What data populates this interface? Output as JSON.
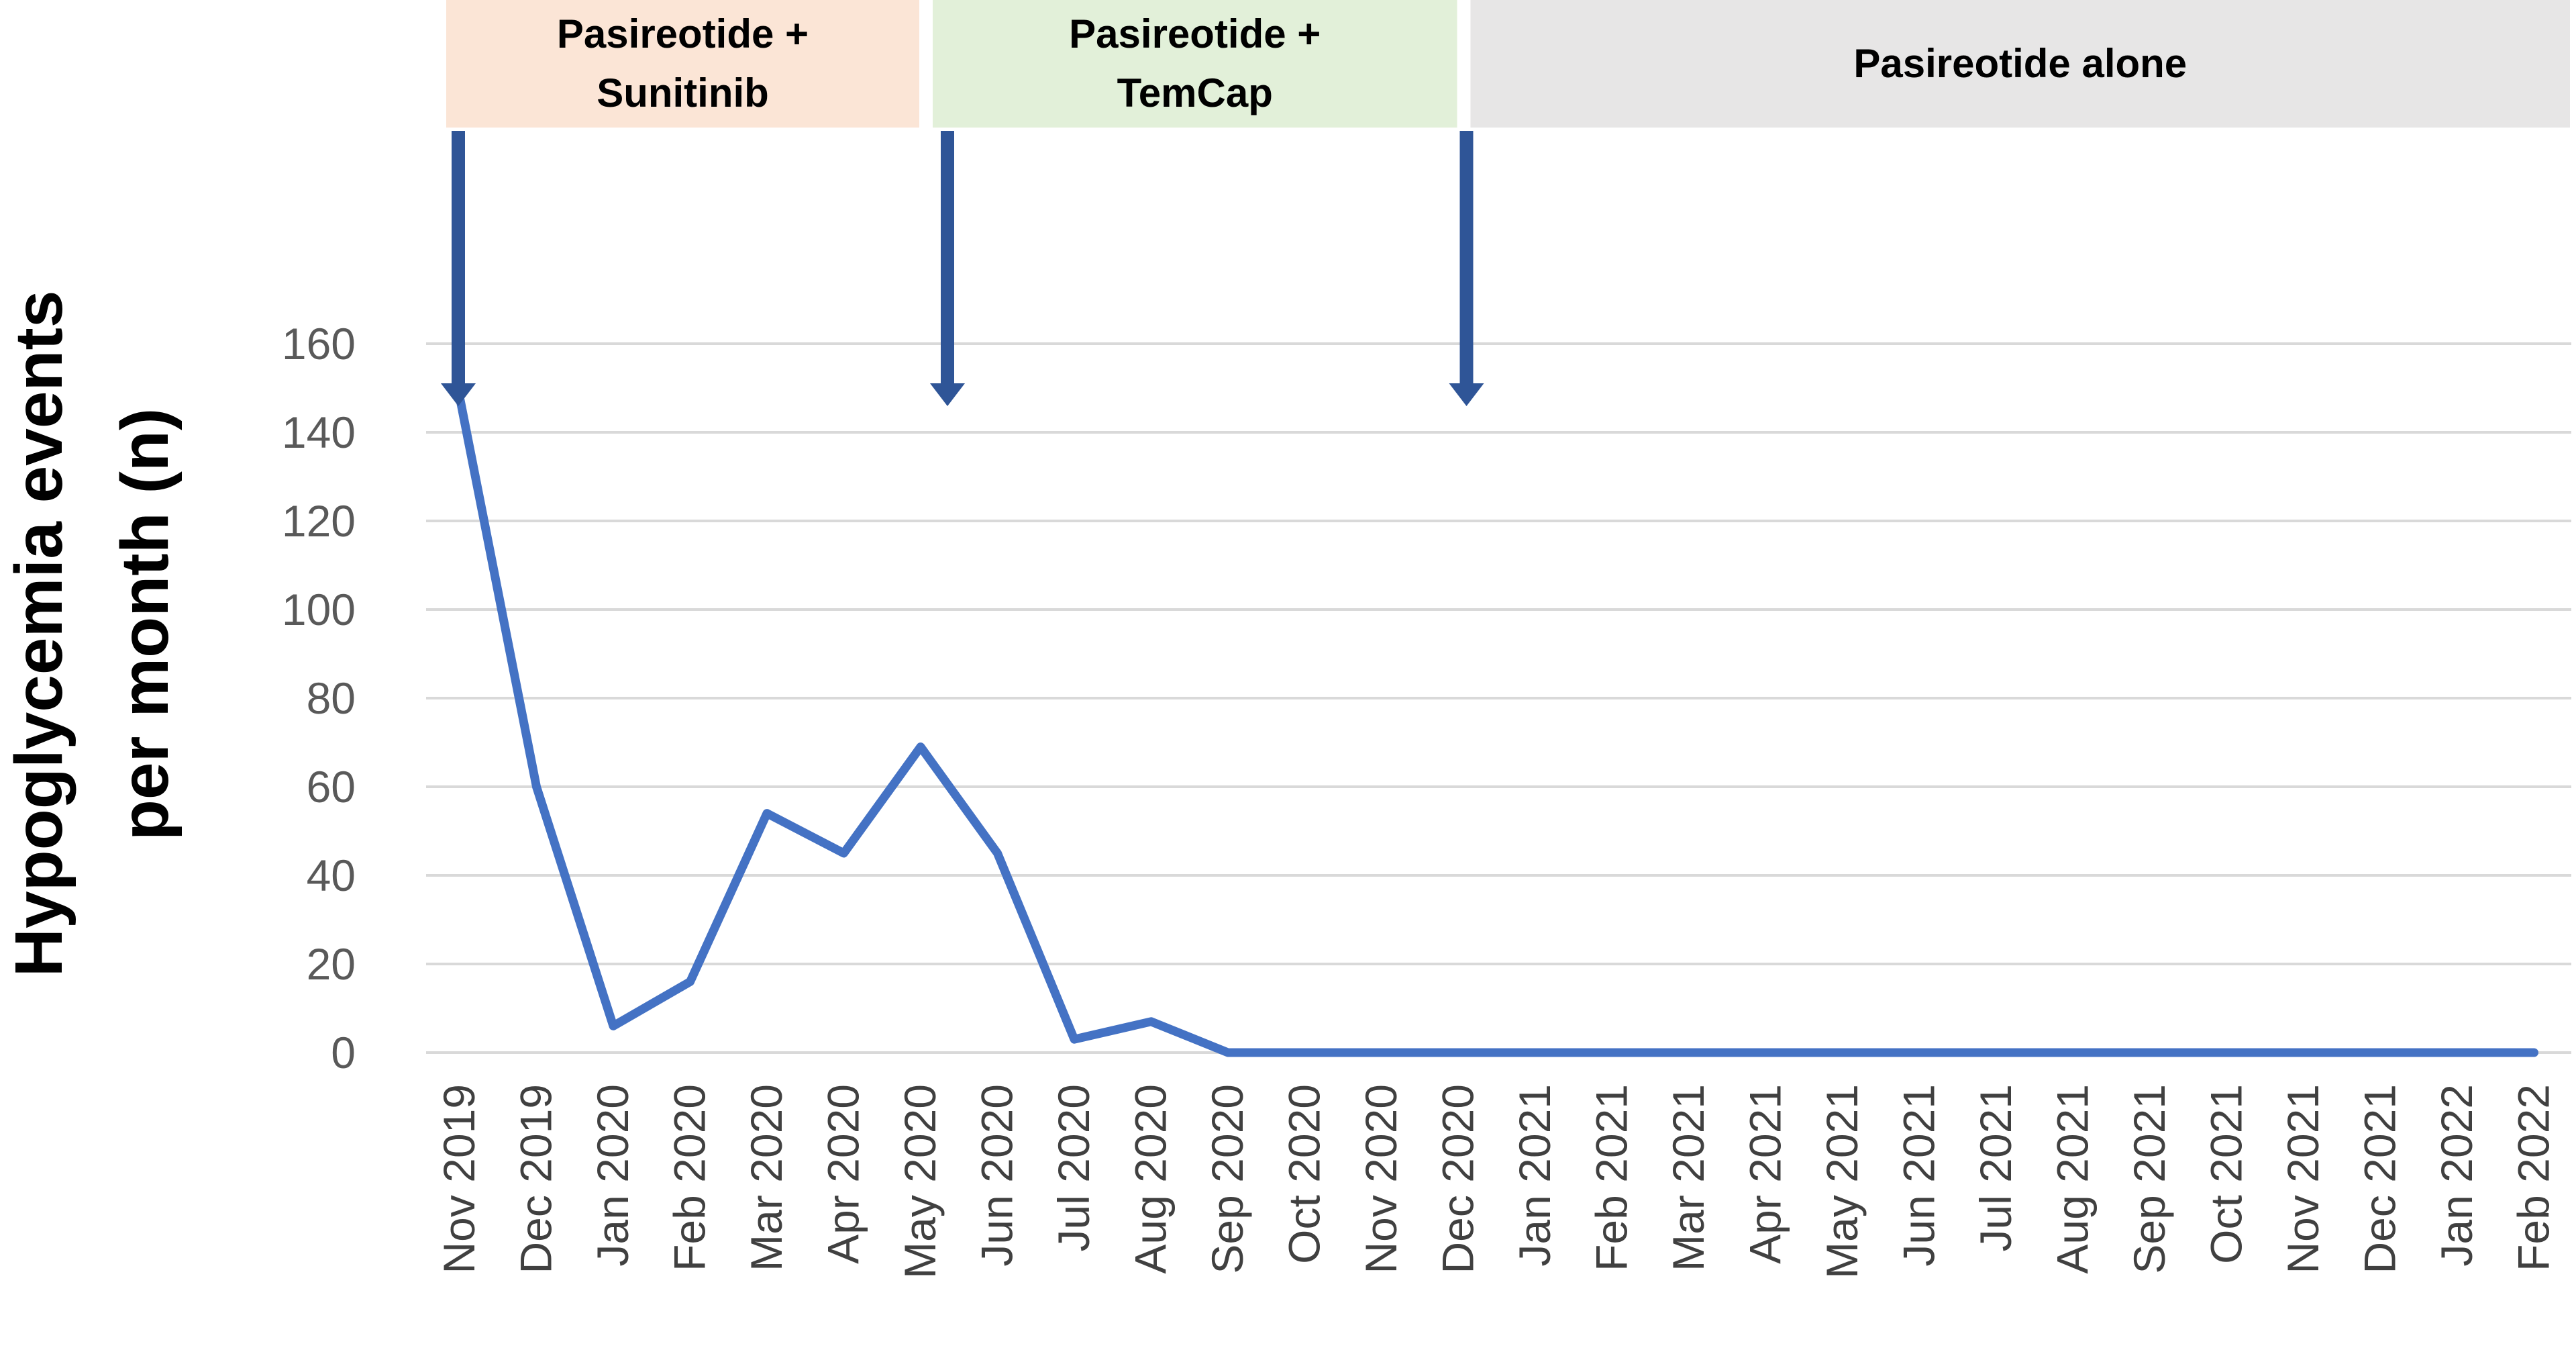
{
  "chart_data": {
    "type": "line",
    "title": "",
    "xlabel": "",
    "ylabel": [
      "Hypoglycemia events",
      "per month (n)"
    ],
    "ylim": [
      0,
      160
    ],
    "yticks": [
      "0",
      "20",
      "40",
      "60",
      "80",
      "100",
      "120",
      "140",
      "160"
    ],
    "grid": true,
    "categories": [
      "Nov 2019",
      "Dec 2019",
      "Jan 2020",
      "Feb 2020",
      "Mar 2020",
      "Apr 2020",
      "May 2020",
      "Jun 2020",
      "Jul 2020",
      "Aug 2020",
      "Sep 2020",
      "Oct 2020",
      "Nov 2020",
      "Dec 2020",
      "Jan 2021",
      "Feb 2021",
      "Mar 2021",
      "Apr 2021",
      "May 2021",
      "Jun 2021",
      "Jul 2021",
      "Aug 2021",
      "Sep 2021",
      "Oct 2021",
      "Nov 2021",
      "Dec 2021",
      "Jan 2022",
      "Feb 2022"
    ],
    "series": [
      {
        "values": [
          148,
          60,
          6,
          16,
          54,
          45,
          69,
          45,
          3,
          7,
          0,
          0,
          0,
          0,
          0,
          0,
          0,
          0,
          0,
          0,
          0,
          0,
          0,
          0,
          0,
          0,
          0,
          0
        ],
        "color": "#4472c4"
      }
    ],
    "phases": [
      {
        "label": [
          "Pasireotide +",
          "Sunitinib"
        ],
        "start": "Nov 2019",
        "end": "May 2020",
        "color": "#fbe5d6"
      },
      {
        "label": [
          "Pasireotide +",
          "TemCap"
        ],
        "start": "May 2020",
        "end": "Dec 2020",
        "color": "#e2f0d9"
      },
      {
        "label": [
          "Pasireotide alone"
        ],
        "start": "Dec 2020",
        "end": "Feb 2022",
        "color": "#e7e6e6"
      }
    ],
    "arrows": [
      "Nov 2019",
      "May 2020",
      "Dec 2020"
    ],
    "arrow_color": "#2f5597"
  }
}
